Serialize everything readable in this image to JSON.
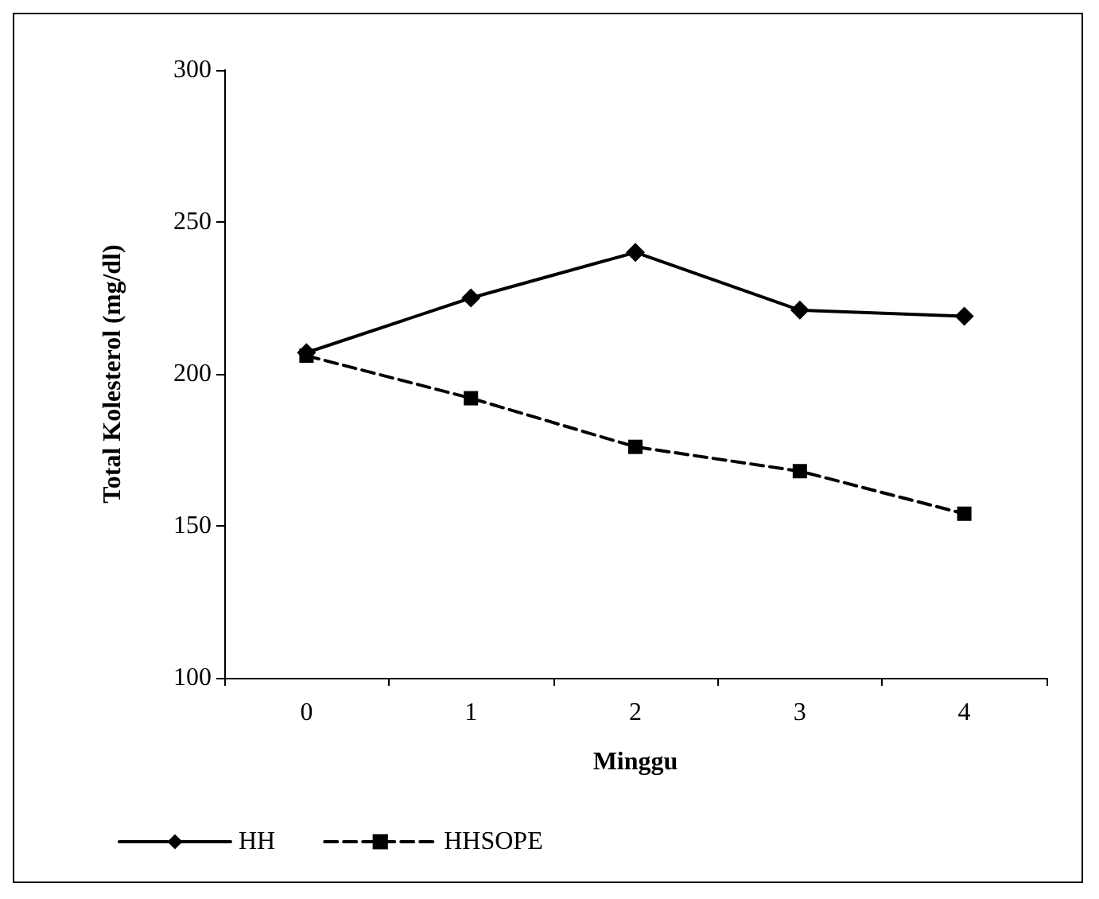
{
  "chart_data": {
    "type": "line",
    "xlabel": "Minggu",
    "ylabel": "Total Kolesterol (mg/dl)",
    "categories": [
      "0",
      "1",
      "2",
      "3",
      "4"
    ],
    "ylim": [
      100,
      300
    ],
    "yticks": [
      100,
      150,
      200,
      250,
      300
    ],
    "grid": false,
    "legend": "bottom",
    "series": [
      {
        "name": "HH",
        "color": "#000000",
        "values": [
          207,
          225,
          240,
          221,
          219
        ],
        "marker": "diamond",
        "line_style": "solid"
      },
      {
        "name": "HHSOPE",
        "color": "#000000",
        "values": [
          206,
          192,
          176,
          168,
          154
        ],
        "marker": "square",
        "line_style": "dashed"
      }
    ]
  }
}
